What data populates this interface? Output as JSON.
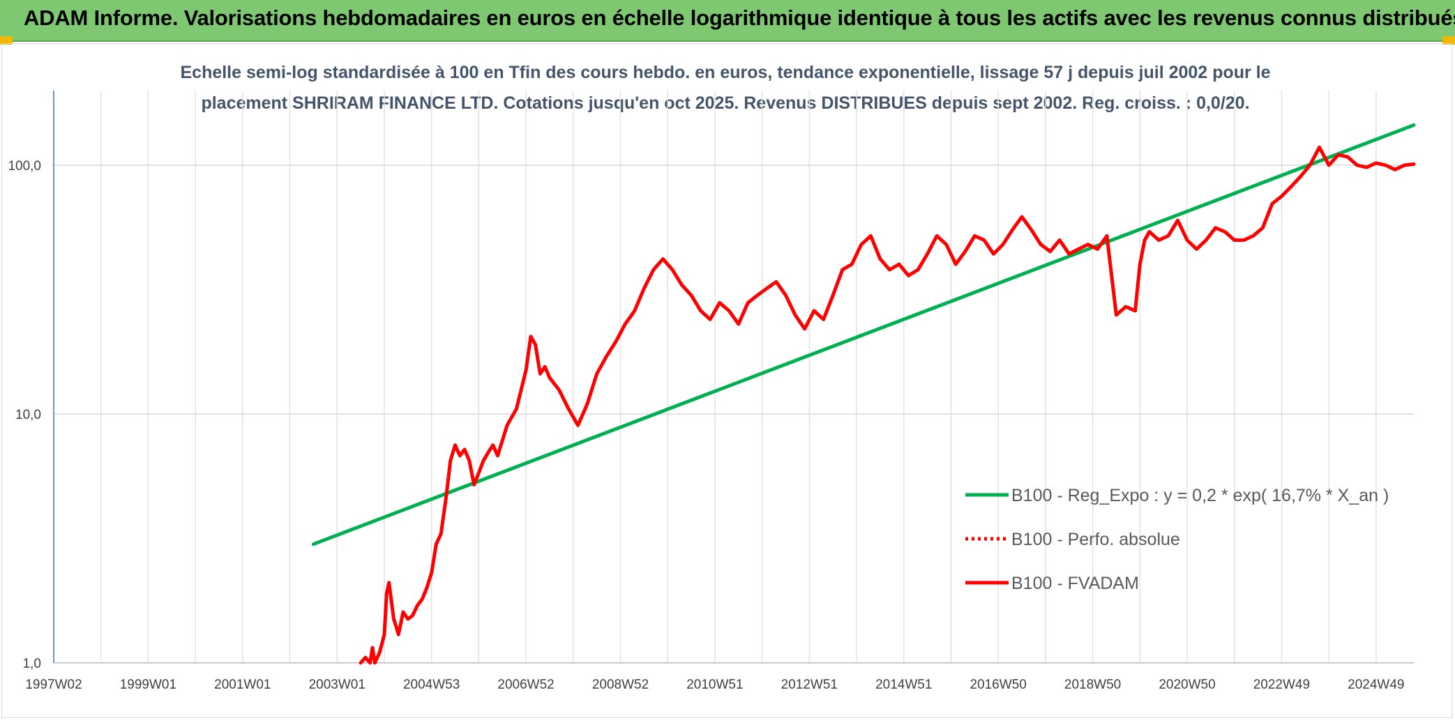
{
  "banner": {
    "title": "ADAM Informe. Valorisations hebdomadaires en euros en échelle logarithmique identique à tous les actifs avec les revenus connus distribués"
  },
  "chart_data": {
    "type": "line",
    "scale": "log",
    "title_line1": "Echelle semi-log standardisée à 100 en Tfin des cours hebdo. en euros, tendance exponentielle, lissage 57 j depuis juil 2002 pour le",
    "title_line2": "placement SHRIRAM FINANCE LTD. Cotations jusqu'en oct 2025. Revenus DISTRIBUES depuis sept 2002. Reg. croiss. : 0,0/20.",
    "ylim": [
      1,
      180
    ],
    "y_ticks": [
      {
        "value": 1,
        "label": "1,0"
      },
      {
        "value": 10,
        "label": "10,0"
      },
      {
        "value": 100,
        "label": "100,0"
      }
    ],
    "xlim": [
      1997.0,
      2025.8
    ],
    "x_ticks": [
      {
        "value": 1997.0,
        "label": "1997W02"
      },
      {
        "value": 1999.0,
        "label": "1999W01"
      },
      {
        "value": 2001.0,
        "label": "2001W01"
      },
      {
        "value": 2003.0,
        "label": "2003W01"
      },
      {
        "value": 2005.0,
        "label": "2004W53"
      },
      {
        "value": 2007.0,
        "label": "2006W52"
      },
      {
        "value": 2009.0,
        "label": "2008W52"
      },
      {
        "value": 2011.0,
        "label": "2010W51"
      },
      {
        "value": 2013.0,
        "label": "2012W51"
      },
      {
        "value": 2015.0,
        "label": "2014W51"
      },
      {
        "value": 2017.0,
        "label": "2016W50"
      },
      {
        "value": 2019.0,
        "label": "2018W50"
      },
      {
        "value": 2021.0,
        "label": "2020W50"
      },
      {
        "value": 2023.0,
        "label": "2022W49"
      },
      {
        "value": 2025.0,
        "label": "2024W49"
      }
    ],
    "gridlines": true,
    "legend_position": "right",
    "series": [
      {
        "name": "B100 - Reg_Expo : y = 0,2 * exp( 16,7% *  X_an )",
        "color": "#00b050",
        "style": "solid",
        "x": [
          2002.5,
          2025.8
        ],
        "y": [
          3.0,
          145
        ]
      },
      {
        "name": "B100 - Perfo. absolue",
        "color": "#ff0000",
        "style": "dotted",
        "x": [],
        "y": []
      },
      {
        "name": "B100 - FVADAM",
        "color": "#ff0000",
        "style": "solid",
        "x": [
          2003.5,
          2003.6,
          2003.7,
          2003.75,
          2003.8,
          2003.9,
          2004.0,
          2004.05,
          2004.1,
          2004.2,
          2004.25,
          2004.3,
          2004.4,
          2004.5,
          2004.6,
          2004.7,
          2004.8,
          2004.9,
          2005.0,
          2005.1,
          2005.2,
          2005.3,
          2005.4,
          2005.5,
          2005.6,
          2005.7,
          2005.8,
          2005.9,
          2006.0,
          2006.1,
          2006.2,
          2006.3,
          2006.4,
          2006.6,
          2006.8,
          2007.0,
          2007.1,
          2007.2,
          2007.3,
          2007.4,
          2007.5,
          2007.7,
          2007.9,
          2008.1,
          2008.3,
          2008.5,
          2008.7,
          2008.9,
          2009.1,
          2009.3,
          2009.5,
          2009.7,
          2009.9,
          2010.1,
          2010.3,
          2010.5,
          2010.7,
          2010.9,
          2011.1,
          2011.3,
          2011.5,
          2011.7,
          2011.9,
          2012.1,
          2012.3,
          2012.5,
          2012.7,
          2012.9,
          2013.1,
          2013.3,
          2013.5,
          2013.7,
          2013.9,
          2014.1,
          2014.3,
          2014.5,
          2014.7,
          2014.9,
          2015.1,
          2015.3,
          2015.5,
          2015.7,
          2015.9,
          2016.1,
          2016.3,
          2016.5,
          2016.7,
          2016.9,
          2017.1,
          2017.3,
          2017.5,
          2017.7,
          2017.9,
          2018.1,
          2018.3,
          2018.5,
          2018.7,
          2018.9,
          2019.1,
          2019.3,
          2019.5,
          2019.7,
          2019.9,
          2020.0,
          2020.1,
          2020.2,
          2020.4,
          2020.6,
          2020.8,
          2021.0,
          2021.2,
          2021.4,
          2021.6,
          2021.8,
          2022.0,
          2022.2,
          2022.4,
          2022.6,
          2022.8,
          2023.0,
          2023.2,
          2023.4,
          2023.6,
          2023.8,
          2024.0,
          2024.2,
          2024.4,
          2024.6,
          2024.8,
          2025.0,
          2025.2,
          2025.4,
          2025.6,
          2025.8
        ],
        "y": [
          1.0,
          1.05,
          1.0,
          1.15,
          1.0,
          1.1,
          1.3,
          1.9,
          2.1,
          1.5,
          1.4,
          1.3,
          1.6,
          1.5,
          1.55,
          1.7,
          1.8,
          2.0,
          2.3,
          3.0,
          3.3,
          4.5,
          6.5,
          7.5,
          6.8,
          7.2,
          6.5,
          5.2,
          5.8,
          6.5,
          7.0,
          7.5,
          6.8,
          9.0,
          10.5,
          15,
          20.5,
          19,
          14.5,
          15.5,
          14,
          12.5,
          10.5,
          9.0,
          11.0,
          14.5,
          17,
          19.5,
          23,
          26,
          32,
          38,
          42,
          38,
          33,
          30,
          26,
          24,
          28,
          26,
          23,
          28,
          30,
          32,
          34,
          30,
          25,
          22,
          26,
          24,
          30,
          38,
          40,
          48,
          52,
          42,
          38,
          40,
          36,
          38,
          44,
          52,
          48,
          40,
          45,
          52,
          50,
          44,
          48,
          55,
          62,
          55,
          48,
          45,
          50,
          44,
          46,
          48,
          46,
          52,
          25,
          27,
          26,
          40,
          50,
          54,
          50,
          52,
          60,
          50,
          46,
          50,
          56,
          54,
          50,
          50,
          52,
          56,
          70,
          75,
          82,
          90,
          100,
          118,
          100,
          110,
          108,
          100,
          98,
          102,
          100,
          96,
          100,
          101
        ]
      }
    ]
  }
}
